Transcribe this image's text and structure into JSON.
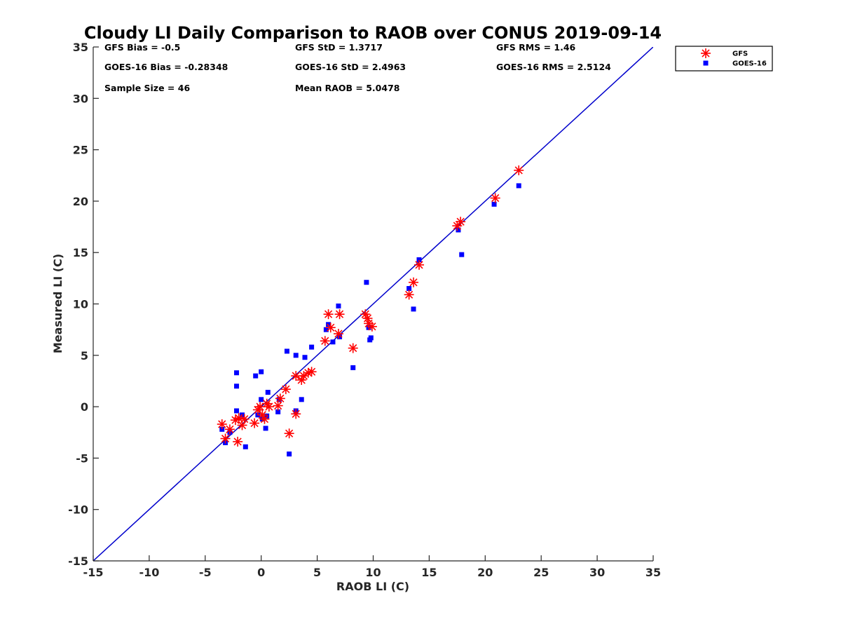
{
  "chart_data": {
    "type": "scatter",
    "title": "Cloudy LI Daily Comparison to RAOB over CONUS 2019-09-14",
    "xlabel": "RAOB LI (C)",
    "ylabel": "Measured LI (C)",
    "xlim": [
      -15,
      35
    ],
    "ylim": [
      -15,
      35
    ],
    "xticks": [
      -15,
      -10,
      -5,
      0,
      5,
      10,
      15,
      20,
      25,
      30,
      35
    ],
    "yticks": [
      -15,
      -10,
      -5,
      0,
      5,
      10,
      15,
      20,
      25,
      30,
      35
    ],
    "grid": false,
    "legend_position": "outside-top-right",
    "reference_line": {
      "from": [
        -15,
        -15
      ],
      "to": [
        35,
        35
      ],
      "color": "#0000cc"
    },
    "stats": [
      {
        "id": "gfs-bias",
        "text": "GFS Bias = -0.5"
      },
      {
        "id": "gfs-std",
        "text": "GFS StD = 1.3717"
      },
      {
        "id": "gfs-rms",
        "text": "GFS RMS = 1.46"
      },
      {
        "id": "goes-bias",
        "text": "GOES-16 Bias = -0.28348"
      },
      {
        "id": "goes-std",
        "text": "GOES-16 StD = 2.4963"
      },
      {
        "id": "goes-rms",
        "text": "GOES-16 RMS = 2.5124"
      },
      {
        "id": "sample-size",
        "text": "Sample Size = 46"
      },
      {
        "id": "mean-raob",
        "text": "Mean RAOB = 5.0478"
      }
    ],
    "series": [
      {
        "name": "GFS",
        "marker": "asterisk",
        "color": "#ff0000",
        "points": [
          [
            -3.5,
            -1.7
          ],
          [
            -3.2,
            -3.1
          ],
          [
            -2.8,
            -2.2
          ],
          [
            -2.3,
            -1.3
          ],
          [
            -2.1,
            -3.4
          ],
          [
            -2.0,
            -1.1
          ],
          [
            -1.7,
            -1.8
          ],
          [
            -1.5,
            -1.2
          ],
          [
            -0.6,
            -1.6
          ],
          [
            -0.3,
            -0.3
          ],
          [
            -0.1,
            0.0
          ],
          [
            0.1,
            -0.8
          ],
          [
            0.3,
            -1.2
          ],
          [
            0.5,
            0.3
          ],
          [
            0.7,
            0.0
          ],
          [
            1.5,
            0.1
          ],
          [
            1.7,
            0.8
          ],
          [
            2.2,
            1.7
          ],
          [
            2.5,
            -2.6
          ],
          [
            3.1,
            -0.7
          ],
          [
            3.1,
            3.0
          ],
          [
            3.6,
            2.6
          ],
          [
            3.8,
            3.0
          ],
          [
            4.2,
            3.3
          ],
          [
            4.5,
            3.4
          ],
          [
            5.7,
            6.4
          ],
          [
            6.0,
            9.0
          ],
          [
            6.2,
            7.7
          ],
          [
            6.9,
            7.1
          ],
          [
            7.0,
            9.0
          ],
          [
            8.2,
            5.7
          ],
          [
            9.3,
            9.0
          ],
          [
            9.5,
            8.6
          ],
          [
            9.6,
            8.1
          ],
          [
            9.9,
            7.8
          ],
          [
            13.2,
            10.9
          ],
          [
            13.6,
            12.1
          ],
          [
            14.1,
            13.8
          ],
          [
            17.5,
            17.6
          ],
          [
            17.8,
            18.0
          ],
          [
            20.9,
            20.3
          ],
          [
            23.0,
            23.0
          ]
        ]
      },
      {
        "name": "GOES-16",
        "marker": "square",
        "color": "#0000ff",
        "points": [
          [
            -3.5,
            -2.2
          ],
          [
            -3.2,
            -3.5
          ],
          [
            -2.8,
            -2.5
          ],
          [
            -2.2,
            3.3
          ],
          [
            -2.2,
            2.0
          ],
          [
            -2.2,
            -0.4
          ],
          [
            -1.7,
            -0.8
          ],
          [
            -1.4,
            -3.9
          ],
          [
            -0.5,
            3.0
          ],
          [
            -0.3,
            -0.8
          ],
          [
            0.0,
            3.4
          ],
          [
            0.0,
            0.7
          ],
          [
            0.1,
            -1.2
          ],
          [
            0.4,
            -2.1
          ],
          [
            0.5,
            -0.9
          ],
          [
            0.6,
            1.4
          ],
          [
            1.5,
            -0.5
          ],
          [
            1.6,
            0.7
          ],
          [
            2.3,
            5.4
          ],
          [
            2.5,
            -4.6
          ],
          [
            3.1,
            5.0
          ],
          [
            3.1,
            -0.4
          ],
          [
            3.6,
            0.7
          ],
          [
            3.9,
            4.8
          ],
          [
            4.5,
            5.8
          ],
          [
            5.8,
            7.5
          ],
          [
            6.0,
            8.0
          ],
          [
            6.4,
            6.3
          ],
          [
            6.9,
            9.8
          ],
          [
            7.0,
            6.8
          ],
          [
            8.2,
            3.8
          ],
          [
            9.4,
            12.1
          ],
          [
            9.6,
            7.7
          ],
          [
            9.7,
            6.5
          ],
          [
            9.8,
            6.7
          ],
          [
            13.2,
            11.5
          ],
          [
            13.6,
            9.5
          ],
          [
            14.1,
            14.3
          ],
          [
            17.6,
            17.2
          ],
          [
            17.9,
            14.8
          ],
          [
            20.8,
            19.7
          ],
          [
            23.0,
            21.5
          ]
        ]
      }
    ]
  }
}
